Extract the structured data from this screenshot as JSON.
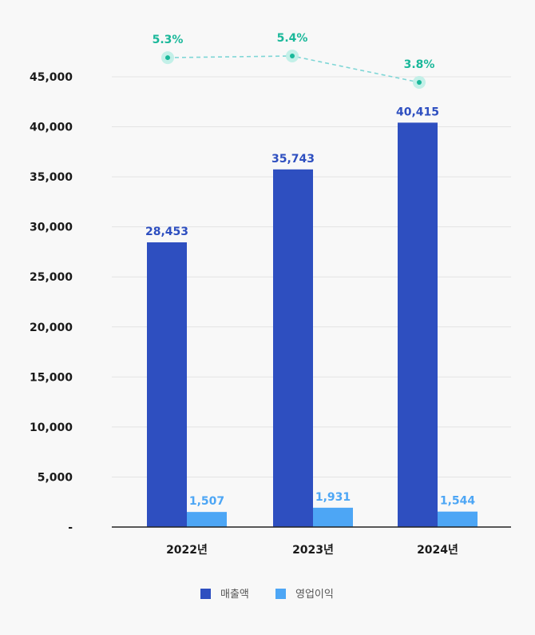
{
  "chart_data": {
    "type": "bar",
    "categories": [
      "2022년",
      "2023년",
      "2024년"
    ],
    "series": [
      {
        "name": "매출액",
        "values": [
          28453,
          35743,
          40415
        ],
        "labels": [
          "28,453",
          "35,743",
          "40,415"
        ],
        "color": "#2e4fc0"
      },
      {
        "name": "영업이익",
        "values": [
          1507,
          1931,
          1544
        ],
        "labels": [
          "1,507",
          "1,931",
          "1,544"
        ],
        "color": "#4da6f5"
      }
    ],
    "overlay_line": {
      "values": [
        5.3,
        5.4,
        3.8
      ],
      "labels": [
        "5.3%",
        "5.4%",
        "3.8%"
      ],
      "color": "#1ab89a",
      "style": "dashed"
    },
    "y_ticks": [
      {
        "value": 0,
        "label": "-"
      },
      {
        "value": 5000,
        "label": "5,000"
      },
      {
        "value": 10000,
        "label": "10,000"
      },
      {
        "value": 15000,
        "label": "15,000"
      },
      {
        "value": 20000,
        "label": "20,000"
      },
      {
        "value": 25000,
        "label": "25,000"
      },
      {
        "value": 30000,
        "label": "30,000"
      },
      {
        "value": 35000,
        "label": "35,000"
      },
      {
        "value": 40000,
        "label": "40,000"
      },
      {
        "value": 45000,
        "label": "45,000"
      }
    ],
    "ylim": [
      0,
      45000
    ],
    "grid": true,
    "legend_position": "bottom-center",
    "colors": {
      "axis": "#222222",
      "grid": "#e3e3e3",
      "text": "#1a1a1a"
    }
  }
}
